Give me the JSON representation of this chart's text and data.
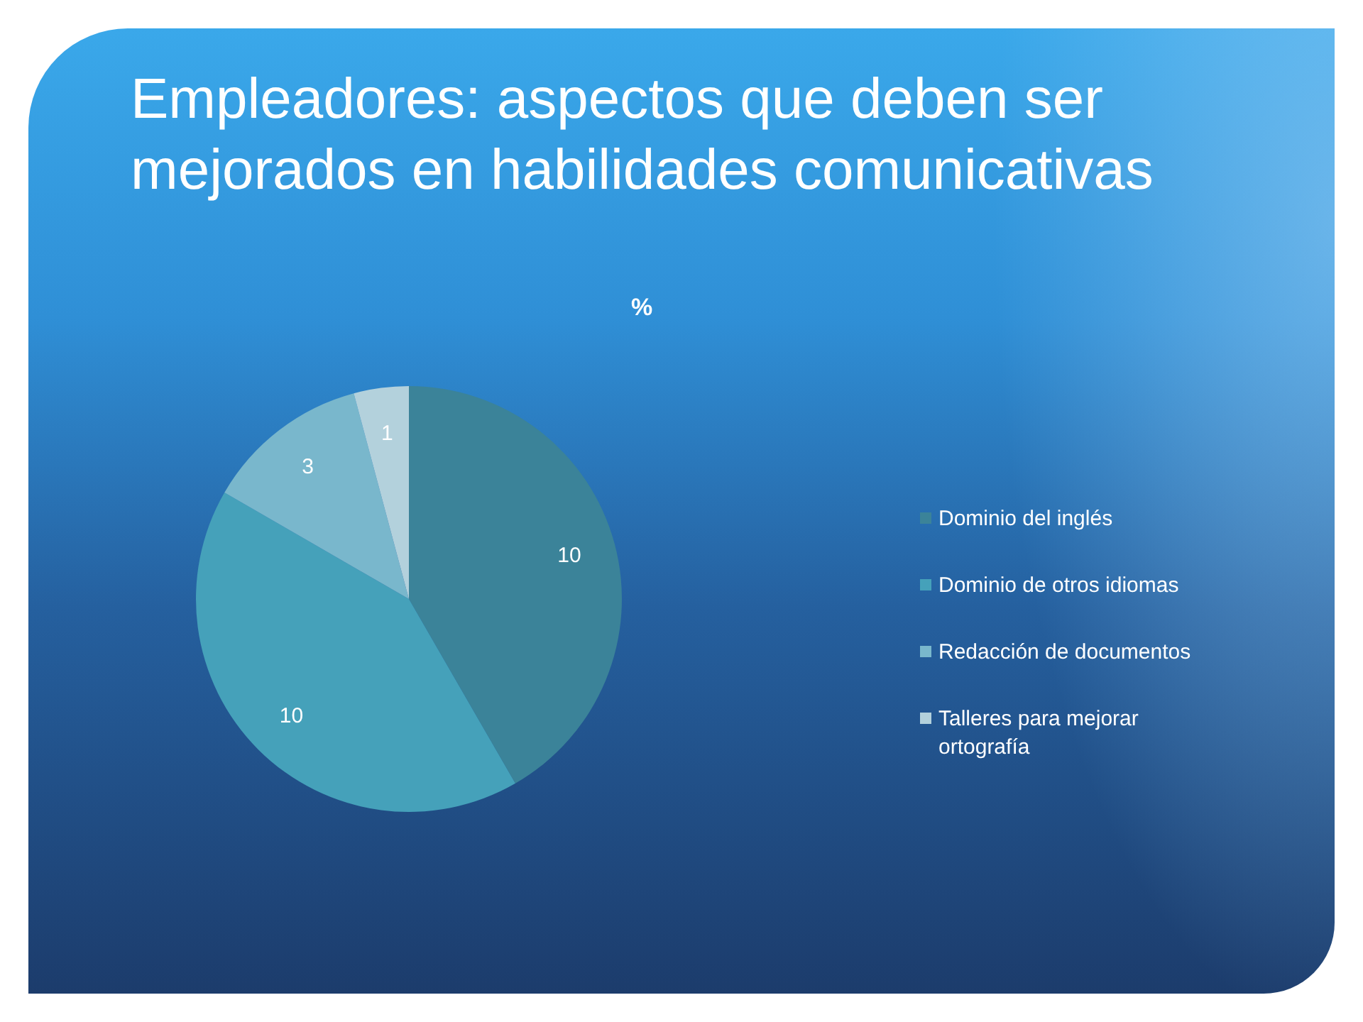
{
  "chart_data": {
    "type": "pie",
    "title": "Empleadores: aspectos que deben ser mejorados en habilidades comunicativas",
    "subtitle": "%",
    "categories": [
      "Dominio del inglés",
      "Dominio de otros idiomas",
      "Redacción de documentos",
      "Talleres para mejorar ortografía"
    ],
    "values": [
      10,
      10,
      3,
      1
    ],
    "colors": [
      "#3b8399",
      "#45a1ba",
      "#79b7cc",
      "#b3d1dc"
    ],
    "data_labels": true,
    "legend": "right"
  }
}
